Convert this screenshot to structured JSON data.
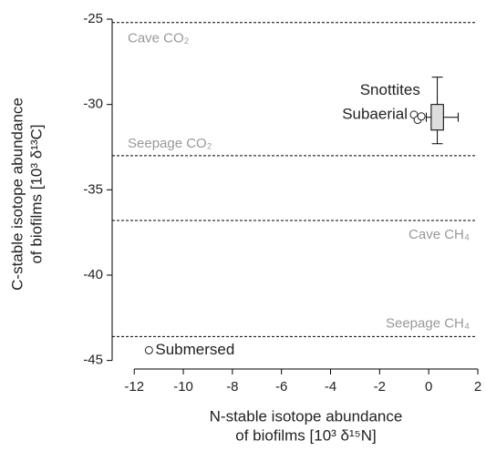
{
  "chart_data": {
    "type": "scatter",
    "xlabel": [
      "N-stable isotope abundance",
      "of biofilms [10³ δ¹⁵N]"
    ],
    "ylabel": [
      "C-stable isotope abundance",
      "of biofilms [10³ δ¹³C]"
    ],
    "xlim": [
      -12.9,
      2
    ],
    "ylim": [
      -45.5,
      -25
    ],
    "xticks": [
      -12,
      -10,
      -8,
      -6,
      -4,
      -2,
      0,
      2
    ],
    "yticks": [
      -25,
      -30,
      -35,
      -40,
      -45
    ],
    "reference_lines": [
      {
        "label": "Cave CO₂",
        "y": -25.2
      },
      {
        "label": "Seepage CO₂",
        "y": -33
      },
      {
        "label": "Cave CH₄",
        "y": -36.8
      },
      {
        "label": "Seepage CH₄",
        "y": -43.6
      }
    ],
    "boxes": [
      {
        "name": "Snottites",
        "x_box": [
          0.1,
          0.6
        ],
        "y_box": [
          -31.5,
          -30
        ],
        "y_whisker": [
          -32.3,
          -28.4
        ],
        "x_whisker": [
          -0.1,
          1.2
        ],
        "color": "#dddddd"
      }
    ],
    "series": [
      {
        "name": "Subaerial",
        "color": "#ffffff",
        "x": [
          -0.6,
          -0.45,
          -0.3
        ],
        "values": [
          -30.6,
          -30.9,
          -30.7
        ]
      },
      {
        "name": "Submersed",
        "color": "#ffffff",
        "x": [
          -11.4
        ],
        "values": [
          -44.4
        ]
      }
    ]
  }
}
